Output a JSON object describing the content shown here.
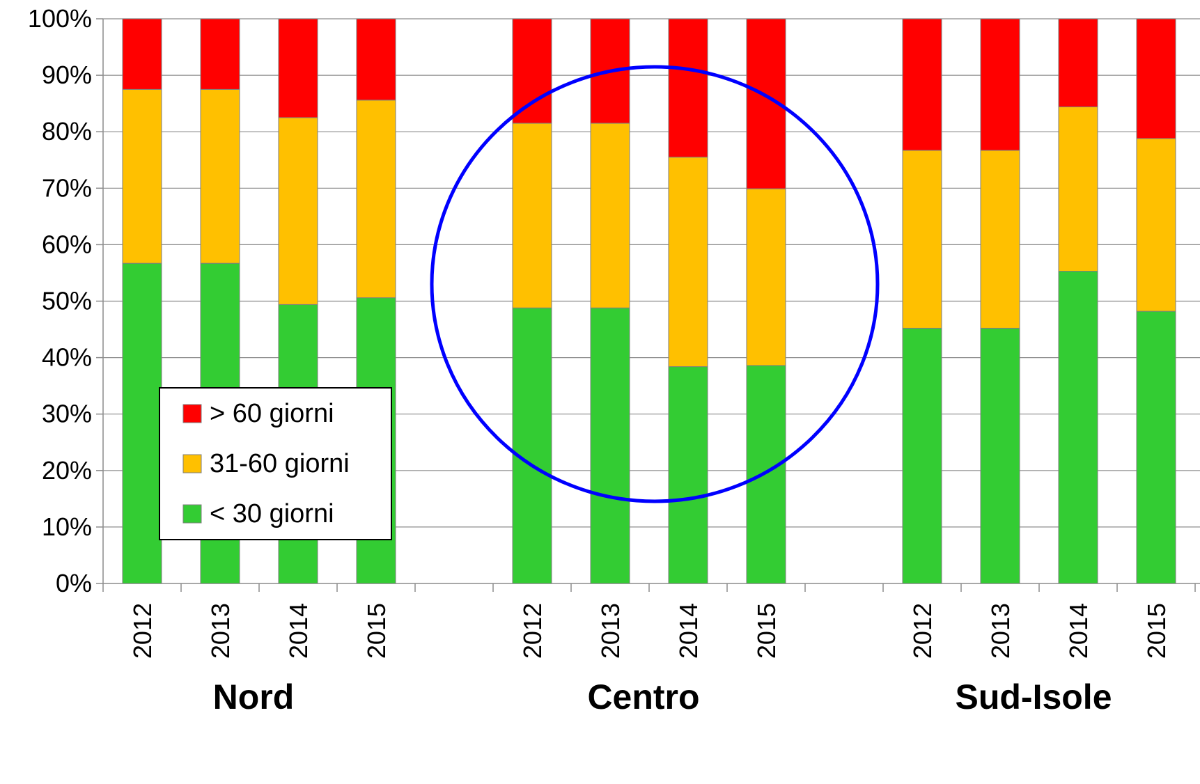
{
  "chart_data": {
    "type": "bar",
    "stacked": true,
    "groups": [
      {
        "name": "Nord",
        "categories": [
          "2012",
          "2013",
          "2014",
          "2015"
        ]
      },
      {
        "name": "Centro",
        "categories": [
          "2012",
          "2013",
          "2014",
          "2015"
        ]
      },
      {
        "name": "Sud-Isole",
        "categories": [
          "2012",
          "2013",
          "2014",
          "2015"
        ]
      }
    ],
    "series": [
      {
        "name": "< 30 giorni",
        "color": "#33cc33",
        "values": [
          56.7,
          56.7,
          49.4,
          50.6,
          48.8,
          48.8,
          38.4,
          38.6,
          45.2,
          45.2,
          55.3,
          48.2
        ]
      },
      {
        "name": "31-60 giorni",
        "color": "#ffc000",
        "values": [
          30.8,
          30.8,
          33.1,
          35.0,
          32.7,
          32.7,
          37.1,
          31.3,
          31.5,
          31.5,
          29.1,
          30.6
        ]
      },
      {
        "name": "> 60 giorni",
        "color": "#ff0000",
        "values": [
          12.5,
          12.5,
          17.5,
          14.4,
          18.5,
          18.5,
          24.5,
          30.1,
          23.3,
          23.3,
          15.6,
          21.2
        ]
      }
    ],
    "legend_order": [
      "> 60 giorni",
      "31-60 giorni",
      "< 30 giorni"
    ],
    "ylim": [
      0,
      100
    ],
    "y_ticks": [
      "0%",
      "10%",
      "20%",
      "30%",
      "40%",
      "50%",
      "60%",
      "70%",
      "80%",
      "90%",
      "100%"
    ],
    "grid": true,
    "legend_position": "lower-left",
    "annotation": {
      "type": "circle",
      "color": "#0000ff",
      "highlights": "Centro"
    }
  }
}
